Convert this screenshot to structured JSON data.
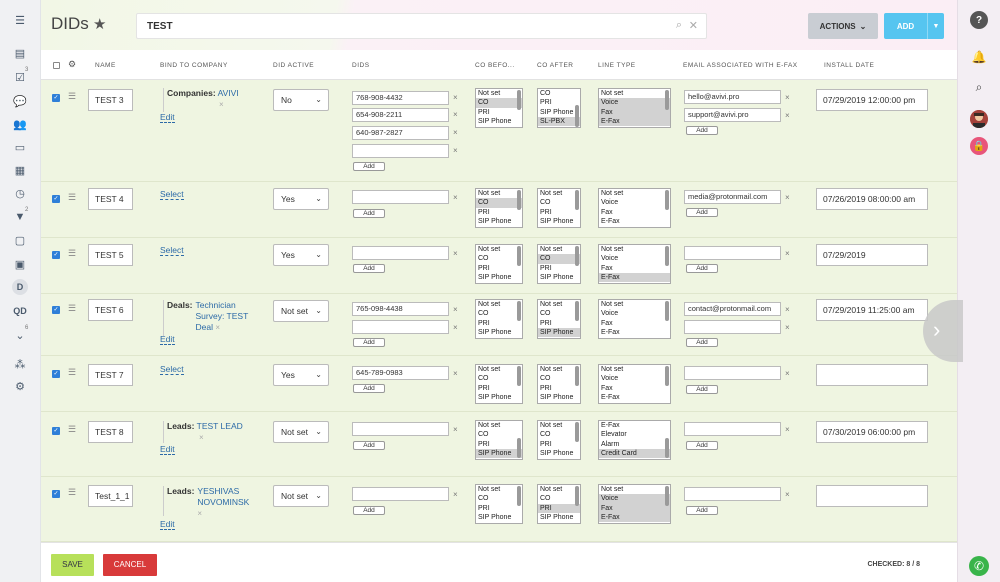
{
  "page": {
    "title": "DIDs",
    "star": "★"
  },
  "search": {
    "value": "TEST"
  },
  "buttons": {
    "actions": "ACTIONS",
    "add": "ADD",
    "save": "SAVE",
    "cancel": "CANCEL"
  },
  "left_sidebar": {
    "badges": [
      "3",
      "2",
      "6"
    ],
    "labels": [
      "D",
      "QD"
    ]
  },
  "columns": [
    "NAME",
    "BIND TO COMPANY",
    "DID ACTIVE",
    "DIDS",
    "CO BEFO...",
    "CO AFTER",
    "LINE TYPE",
    "EMAIL ASSOCIATED WITH E-FAX",
    "INSTALL DATE"
  ],
  "common": {
    "add_small": "Add",
    "edit": "Edit",
    "select": "Select",
    "x": "×"
  },
  "rows": [
    {
      "name": "TEST 3",
      "bind_label": "Companies:",
      "bind_value": "AVIVI",
      "did_active": "No",
      "dids": [
        "768-908-4432",
        "654-908-2211",
        "640-987-2827",
        ""
      ],
      "co_before": [
        "Not set",
        "CO",
        "PRI",
        "SIP Phone"
      ],
      "co_after": [
        "CO",
        "PRI",
        "SIP Phone",
        "SL-PBX"
      ],
      "line_type": [
        "Not set",
        "Voice",
        "Fax",
        "E-Fax"
      ],
      "emails": [
        "hello@avivi.pro",
        "support@avivi.pro"
      ],
      "install": "07/29/2019 12:00:00 pm"
    },
    {
      "name": "TEST 4",
      "did_active": "Yes",
      "dids": [
        ""
      ],
      "co_before": [
        "Not set",
        "CO",
        "PRI",
        "SIP Phone"
      ],
      "co_after": [
        "Not set",
        "CO",
        "PRI",
        "SIP Phone"
      ],
      "line_type": [
        "Not set",
        "Voice",
        "Fax",
        "E-Fax"
      ],
      "emails": [
        "media@protonmail.com"
      ],
      "install": "07/26/2019 08:00:00 am"
    },
    {
      "name": "TEST 5",
      "did_active": "Yes",
      "dids": [
        ""
      ],
      "co_before": [
        "Not set",
        "CO",
        "PRI",
        "SIP Phone"
      ],
      "co_after": [
        "Not set",
        "CO",
        "PRI",
        "SIP Phone"
      ],
      "line_type": [
        "Not set",
        "Voice",
        "Fax",
        "E-Fax"
      ],
      "emails": [
        ""
      ],
      "install": "07/29/2019"
    },
    {
      "name": "TEST 6",
      "bind_label": "Deals:",
      "bind_value": "Technician Survey: TEST Deal",
      "did_active": "Not set",
      "dids": [
        "765-098-4438",
        ""
      ],
      "co_before": [
        "Not set",
        "CO",
        "PRI",
        "SIP Phone"
      ],
      "co_after": [
        "Not set",
        "CO",
        "PRI",
        "SIP Phone"
      ],
      "line_type": [
        "Not set",
        "Voice",
        "Fax",
        "E-Fax"
      ],
      "emails": [
        "contact@protonmail.com",
        ""
      ],
      "install": "07/29/2019 11:25:00 am"
    },
    {
      "name": "TEST 7",
      "did_active": "Yes",
      "dids": [
        "645-789-0983"
      ],
      "co_before": [
        "Not set",
        "CO",
        "PRI",
        "SIP Phone"
      ],
      "co_after": [
        "Not set",
        "CO",
        "PRI",
        "SIP Phone"
      ],
      "line_type": [
        "Not set",
        "Voice",
        "Fax",
        "E-Fax"
      ],
      "emails": [
        ""
      ],
      "install": ""
    },
    {
      "name": "TEST 8",
      "bind_label": "Leads:",
      "bind_value": "TEST LEAD",
      "did_active": "Not set",
      "dids": [
        ""
      ],
      "co_before": [
        "Not set",
        "CO",
        "PRI",
        "SIP Phone"
      ],
      "co_after": [
        "Not set",
        "CO",
        "PRI",
        "SIP Phone"
      ],
      "line_type": [
        "E-Fax",
        "Elevator",
        "Alarm",
        "Credit Card"
      ],
      "emails": [
        ""
      ],
      "install": "07/30/2019 06:00:00 pm"
    },
    {
      "name": "Test_1_1",
      "bind_label": "Leads:",
      "bind_value": "YESHIVAS NOVOMINSK",
      "did_active": "Not set",
      "dids": [
        ""
      ],
      "co_before": [
        "Not set",
        "CO",
        "PRI",
        "SIP Phone"
      ],
      "co_after": [
        "Not set",
        "CO",
        "PRI",
        "SIP Phone"
      ],
      "line_type": [
        "Not set",
        "Voice",
        "Fax",
        "E-Fax"
      ],
      "emails": [
        ""
      ],
      "install": ""
    }
  ],
  "footer": {
    "checked_label": "CHECKED:",
    "checked_value": "8 / 8"
  }
}
